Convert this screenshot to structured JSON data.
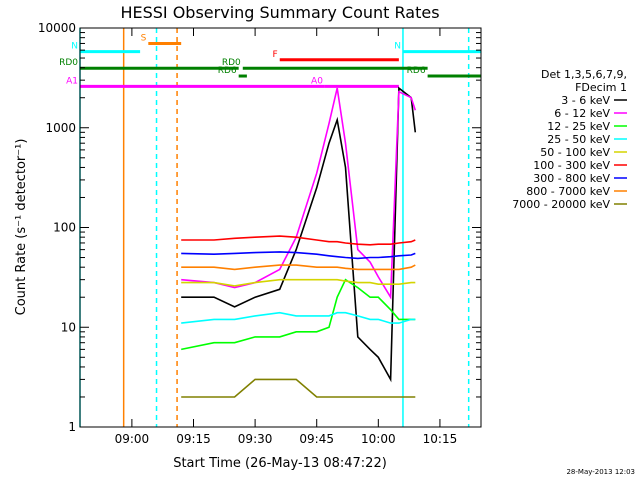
{
  "chart_data": {
    "type": "line",
    "title": "HESSI Observing Summary Count Rates",
    "xlabel": "Start Time (26-May-13 08:47:22)",
    "ylabel": "Count Rate (s⁻¹ detector⁻¹)",
    "y_scale": "log",
    "ylim": [
      1,
      10000
    ],
    "xlim": [
      "08:47:22",
      "10:25:00"
    ],
    "x_ticks": [
      "09:00",
      "09:15",
      "09:30",
      "09:45",
      "10:00",
      "10:15"
    ],
    "y_ticks": [
      "1",
      "10",
      "100",
      "1000",
      "10000"
    ],
    "legend_position": "right",
    "legend_header": [
      "Det 1,3,5,6,7,9,",
      "FDecim 1"
    ],
    "series": [
      {
        "name": "3 - 6 keV",
        "color": "#000000",
        "points": [
          [
            "09:12",
            20
          ],
          [
            "09:20",
            20
          ],
          [
            "09:25",
            16
          ],
          [
            "09:30",
            20
          ],
          [
            "09:36",
            24
          ],
          [
            "09:40",
            60
          ],
          [
            "09:45",
            250
          ],
          [
            "09:48",
            700
          ],
          [
            "09:50",
            1200
          ],
          [
            "09:52",
            400
          ],
          [
            "09:55",
            8
          ],
          [
            "09:58",
            6
          ],
          [
            "10:00",
            5
          ],
          [
            "10:03",
            3
          ],
          [
            "10:05",
            2500
          ],
          [
            "10:08",
            2000
          ],
          [
            "10:09",
            900
          ]
        ]
      },
      {
        "name": "6 - 12 keV",
        "color": "#ff00ff",
        "points": [
          [
            "09:12",
            30
          ],
          [
            "09:20",
            28
          ],
          [
            "09:25",
            25
          ],
          [
            "09:30",
            28
          ],
          [
            "09:36",
            38
          ],
          [
            "09:40",
            80
          ],
          [
            "09:45",
            350
          ],
          [
            "09:48",
            1100
          ],
          [
            "09:50",
            2500
          ],
          [
            "09:52",
            700
          ],
          [
            "09:55",
            60
          ],
          [
            "09:58",
            45
          ],
          [
            "10:00",
            32
          ],
          [
            "10:03",
            20
          ],
          [
            "10:05",
            2300
          ],
          [
            "10:08",
            2000
          ],
          [
            "10:09",
            1500
          ]
        ]
      },
      {
        "name": "12 - 25 keV",
        "color": "#00ff00",
        "points": [
          [
            "09:12",
            6
          ],
          [
            "09:20",
            7
          ],
          [
            "09:25",
            7
          ],
          [
            "09:30",
            8
          ],
          [
            "09:36",
            8
          ],
          [
            "09:40",
            9
          ],
          [
            "09:45",
            9
          ],
          [
            "09:48",
            10
          ],
          [
            "09:50",
            20
          ],
          [
            "09:52",
            30
          ],
          [
            "09:55",
            25
          ],
          [
            "09:58",
            20
          ],
          [
            "10:00",
            20
          ],
          [
            "10:03",
            15
          ],
          [
            "10:05",
            12
          ],
          [
            "10:08",
            12
          ],
          [
            "10:09",
            12
          ]
        ]
      },
      {
        "name": "25 - 50 keV",
        "color": "#00ffff",
        "points": [
          [
            "09:12",
            11
          ],
          [
            "09:20",
            12
          ],
          [
            "09:25",
            12
          ],
          [
            "09:30",
            13
          ],
          [
            "09:36",
            14
          ],
          [
            "09:40",
            13
          ],
          [
            "09:45",
            13
          ],
          [
            "09:48",
            13
          ],
          [
            "09:50",
            14
          ],
          [
            "09:52",
            14
          ],
          [
            "09:55",
            13
          ],
          [
            "09:58",
            12
          ],
          [
            "10:00",
            12
          ],
          [
            "10:03",
            11
          ],
          [
            "10:05",
            11
          ],
          [
            "10:08",
            12
          ],
          [
            "10:09",
            12
          ]
        ]
      },
      {
        "name": "50 - 100 keV",
        "color": "#d4d400",
        "points": [
          [
            "09:12",
            28
          ],
          [
            "09:20",
            28
          ],
          [
            "09:25",
            26
          ],
          [
            "09:30",
            28
          ],
          [
            "09:36",
            30
          ],
          [
            "09:40",
            30
          ],
          [
            "09:45",
            30
          ],
          [
            "09:48",
            30
          ],
          [
            "09:50",
            30
          ],
          [
            "09:52",
            29
          ],
          [
            "09:55",
            28
          ],
          [
            "09:58",
            28
          ],
          [
            "10:00",
            27
          ],
          [
            "10:03",
            27
          ],
          [
            "10:05",
            27
          ],
          [
            "10:08",
            28
          ],
          [
            "10:09",
            28
          ]
        ]
      },
      {
        "name": "100 - 300 keV",
        "color": "#ff0000",
        "points": [
          [
            "09:12",
            75
          ],
          [
            "09:20",
            75
          ],
          [
            "09:25",
            78
          ],
          [
            "09:30",
            80
          ],
          [
            "09:36",
            82
          ],
          [
            "09:40",
            80
          ],
          [
            "09:45",
            75
          ],
          [
            "09:48",
            72
          ],
          [
            "09:50",
            72
          ],
          [
            "09:52",
            70
          ],
          [
            "09:55",
            68
          ],
          [
            "09:58",
            67
          ],
          [
            "10:00",
            68
          ],
          [
            "10:03",
            68
          ],
          [
            "10:05",
            70
          ],
          [
            "10:08",
            72
          ],
          [
            "10:09",
            75
          ]
        ]
      },
      {
        "name": "300 - 800 keV",
        "color": "#0000ff",
        "points": [
          [
            "09:12",
            55
          ],
          [
            "09:20",
            54
          ],
          [
            "09:25",
            55
          ],
          [
            "09:30",
            56
          ],
          [
            "09:36",
            57
          ],
          [
            "09:40",
            56
          ],
          [
            "09:45",
            54
          ],
          [
            "09:48",
            52
          ],
          [
            "09:50",
            51
          ],
          [
            "09:52",
            50
          ],
          [
            "09:55",
            49
          ],
          [
            "09:58",
            50
          ],
          [
            "10:00",
            50
          ],
          [
            "10:03",
            51
          ],
          [
            "10:05",
            52
          ],
          [
            "10:08",
            53
          ],
          [
            "10:09",
            55
          ]
        ]
      },
      {
        "name": "800 - 7000 keV",
        "color": "#ff8000",
        "points": [
          [
            "09:12",
            40
          ],
          [
            "09:20",
            40
          ],
          [
            "09:25",
            38
          ],
          [
            "09:30",
            40
          ],
          [
            "09:36",
            42
          ],
          [
            "09:40",
            42
          ],
          [
            "09:45",
            40
          ],
          [
            "09:48",
            40
          ],
          [
            "09:50",
            40
          ],
          [
            "09:52",
            39
          ],
          [
            "09:55",
            38
          ],
          [
            "09:58",
            38
          ],
          [
            "10:00",
            38
          ],
          [
            "10:03",
            38
          ],
          [
            "10:05",
            38
          ],
          [
            "10:08",
            40
          ],
          [
            "10:09",
            42
          ]
        ]
      },
      {
        "name": "7000 - 20000 keV",
        "color": "#808000",
        "points": [
          [
            "09:12",
            2
          ],
          [
            "09:20",
            2
          ],
          [
            "09:25",
            2
          ],
          [
            "09:30",
            3
          ],
          [
            "09:36",
            3
          ],
          [
            "09:40",
            3
          ],
          [
            "09:45",
            2
          ],
          [
            "09:48",
            2
          ],
          [
            "09:50",
            2
          ],
          [
            "09:52",
            2
          ],
          [
            "09:55",
            2
          ],
          [
            "09:58",
            2
          ],
          [
            "10:00",
            2
          ],
          [
            "10:03",
            2
          ],
          [
            "10:05",
            2
          ],
          [
            "10:08",
            2
          ],
          [
            "10:09",
            2
          ]
        ]
      }
    ],
    "flags": [
      {
        "label": "S",
        "color": "#ff8000",
        "start": "09:04",
        "end": "09:12",
        "level": 7000
      },
      {
        "label": "N",
        "color": "#00ffff",
        "start": "08:47:22",
        "end": "09:02",
        "level": 5800
      },
      {
        "label": "N",
        "color": "#00ffff",
        "start": "10:06",
        "end": "10:25",
        "level": 5800
      },
      {
        "label": "F",
        "color": "#ff0000",
        "start": "09:36",
        "end": "10:05",
        "level": 4800
      },
      {
        "label": "RD0",
        "color": "#008000",
        "start": "08:47:22",
        "end": "09:26",
        "level": 3950
      },
      {
        "label": "RD0",
        "color": "#008000",
        "start": "09:27",
        "end": "10:12",
        "level": 3950
      },
      {
        "label": "RD6",
        "color": "#008000",
        "start": "09:26",
        "end": "09:28",
        "level": 3300
      },
      {
        "label": "RD6",
        "color": "#008000",
        "start": "10:12",
        "end": "10:25",
        "level": 3300
      },
      {
        "label": "A1",
        "color": "#ff00ff",
        "start": "08:47:22",
        "end": "09:47",
        "level": 2600
      },
      {
        "label": "A0",
        "color": "#ff00ff",
        "start": "09:47",
        "end": "10:05",
        "level": 2600
      }
    ],
    "vertical_lines": [
      {
        "color": "#ff8000",
        "style": "solid",
        "time": "08:58"
      },
      {
        "color": "#00ffff",
        "style": "dashed",
        "time": "09:06"
      },
      {
        "color": "#ff8000",
        "style": "dashed",
        "time": "09:11"
      },
      {
        "color": "#00ffff",
        "style": "solid",
        "time": "10:06"
      },
      {
        "color": "#00ffff",
        "style": "dashed",
        "time": "10:22"
      },
      {
        "color": "#00ffff",
        "style": "solid",
        "time": "08:47:22"
      }
    ]
  },
  "footer_date": "28-May-2013 12:03"
}
